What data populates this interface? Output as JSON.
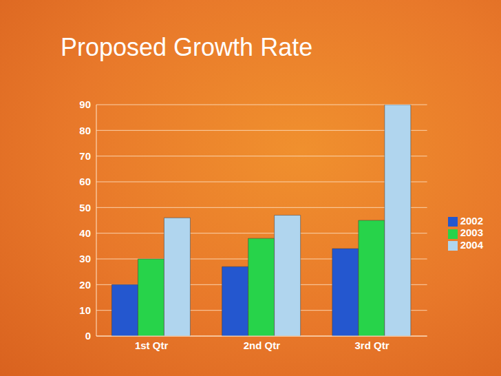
{
  "chart_data": {
    "type": "bar",
    "title": "Proposed Growth Rate",
    "categories": [
      "1st Qtr",
      "2nd Qtr",
      "3rd Qtr"
    ],
    "series": [
      {
        "name": "2002",
        "color": "#2457cf",
        "values": [
          20,
          27,
          34
        ]
      },
      {
        "name": "2003",
        "color": "#27d34a",
        "values": [
          30,
          38,
          45
        ]
      },
      {
        "name": "2004",
        "color": "#b0d5ee",
        "values": [
          46,
          47,
          90
        ]
      }
    ],
    "ylim": [
      0,
      90
    ],
    "yticks": [
      0,
      10,
      20,
      30,
      40,
      50,
      60,
      70,
      80,
      90
    ],
    "grid": true,
    "legend": "right"
  }
}
